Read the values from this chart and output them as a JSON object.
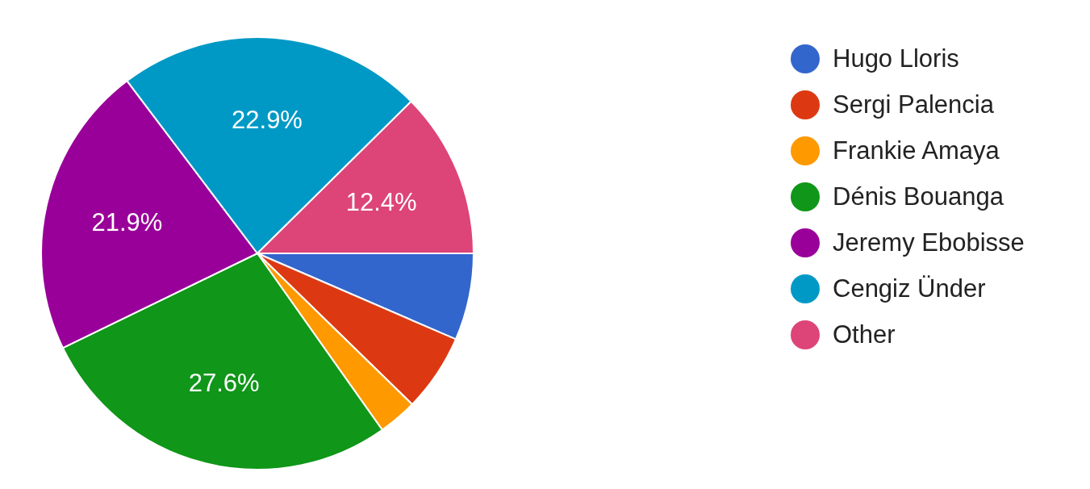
{
  "chart_data": {
    "type": "pie",
    "categories": [
      "Hugo Lloris",
      "Sergi Palencia",
      "Frankie Amaya",
      "Dénis Bouanga",
      "Jeremy Ebobisse",
      "Cengiz Ünder",
      "Other"
    ],
    "values": [
      6.5,
      5.8,
      2.9,
      27.6,
      21.9,
      22.9,
      12.4
    ],
    "colors": [
      "#3366cc",
      "#dc3912",
      "#ff9900",
      "#109618",
      "#990099",
      "#0099c6",
      "#dd4477"
    ],
    "value_labels": [
      null,
      null,
      null,
      "27.6%",
      "21.9%",
      "22.9%",
      "12.4%"
    ],
    "legend": "right"
  }
}
